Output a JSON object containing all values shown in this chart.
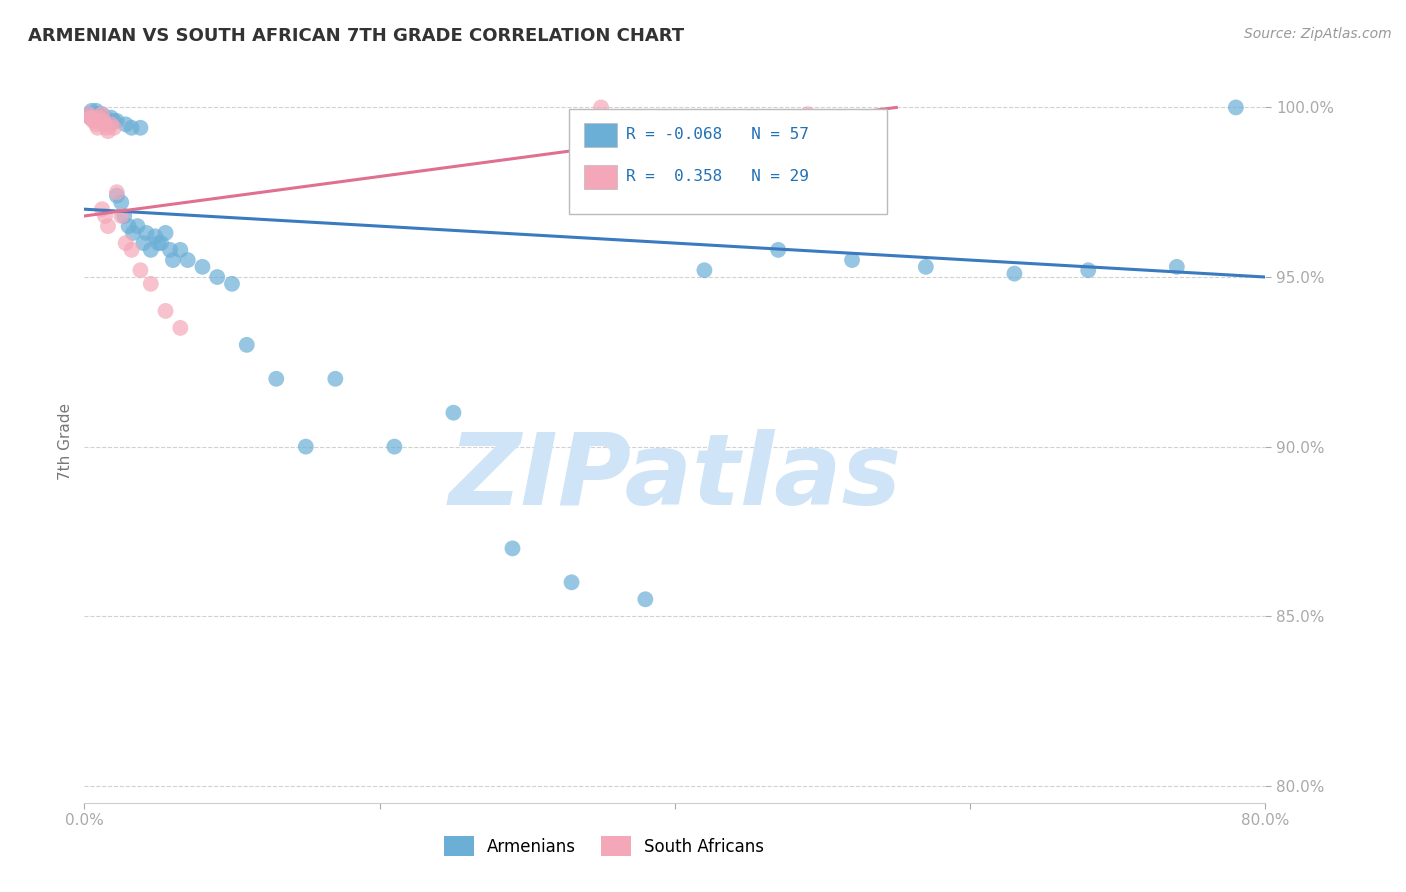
{
  "title": "ARMENIAN VS SOUTH AFRICAN 7TH GRADE CORRELATION CHART",
  "source": "Source: ZipAtlas.com",
  "ylabel": "7th Grade",
  "xlim": [
    0.0,
    0.8
  ],
  "ylim": [
    0.795,
    1.008
  ],
  "xticks": [
    0.0,
    0.2,
    0.4,
    0.6,
    0.8
  ],
  "xtick_labels": [
    "0.0%",
    "",
    "",
    "",
    "80.0%"
  ],
  "yticks": [
    0.8,
    0.85,
    0.9,
    0.95,
    1.0
  ],
  "ytick_labels": [
    "80.0%",
    "85.0%",
    "90.0%",
    "95.0%",
    "100.0%"
  ],
  "armenian_R": -0.068,
  "armenian_N": 57,
  "southafrican_R": 0.358,
  "southafrican_N": 29,
  "armenian_color": "#6baed6",
  "southafrican_color": "#f4a7b9",
  "trendline_armenian_color": "#3a7abf",
  "trendline_southafrican_color": "#e07090",
  "title_fontsize": 13,
  "source_fontsize": 10,
  "axis_label_fontsize": 11,
  "tick_fontsize": 11,
  "legend_fontsize": 12,
  "armenian_x": [
    0.003,
    0.004,
    0.005,
    0.006,
    0.007,
    0.008,
    0.009,
    0.01,
    0.011,
    0.012,
    0.013,
    0.014,
    0.015,
    0.016,
    0.018,
    0.02,
    0.022,
    0.025,
    0.027,
    0.03,
    0.033,
    0.036,
    0.04,
    0.045,
    0.05,
    0.055,
    0.06,
    0.065,
    0.07,
    0.08,
    0.09,
    0.1,
    0.11,
    0.13,
    0.15,
    0.17,
    0.21,
    0.25,
    0.29,
    0.33,
    0.38,
    0.42,
    0.47,
    0.52,
    0.57,
    0.63,
    0.68,
    0.74,
    0.78,
    0.022,
    0.028,
    0.032,
    0.038,
    0.042,
    0.048,
    0.052,
    0.058
  ],
  "armenian_y": [
    0.998,
    0.997,
    0.999,
    0.998,
    0.997,
    0.999,
    0.998,
    0.997,
    0.996,
    0.998,
    0.996,
    0.997,
    0.996,
    0.995,
    0.997,
    0.996,
    0.974,
    0.972,
    0.968,
    0.965,
    0.963,
    0.965,
    0.96,
    0.958,
    0.96,
    0.963,
    0.955,
    0.958,
    0.955,
    0.953,
    0.95,
    0.948,
    0.93,
    0.92,
    0.9,
    0.92,
    0.9,
    0.91,
    0.87,
    0.86,
    0.855,
    0.952,
    0.958,
    0.955,
    0.953,
    0.951,
    0.952,
    0.953,
    1.0,
    0.996,
    0.995,
    0.994,
    0.994,
    0.963,
    0.962,
    0.96,
    0.958
  ],
  "southafrican_x": [
    0.003,
    0.004,
    0.005,
    0.006,
    0.007,
    0.008,
    0.009,
    0.01,
    0.011,
    0.012,
    0.013,
    0.014,
    0.015,
    0.016,
    0.018,
    0.02,
    0.022,
    0.025,
    0.028,
    0.032,
    0.038,
    0.045,
    0.055,
    0.065,
    0.35,
    0.49,
    0.012,
    0.014,
    0.016
  ],
  "southafrican_y": [
    0.998,
    0.997,
    0.997,
    0.996,
    0.996,
    0.995,
    0.994,
    0.997,
    0.996,
    0.998,
    0.996,
    0.995,
    0.994,
    0.993,
    0.995,
    0.994,
    0.975,
    0.968,
    0.96,
    0.958,
    0.952,
    0.948,
    0.94,
    0.935,
    1.0,
    0.998,
    0.97,
    0.968,
    0.965
  ],
  "background_color": "#ffffff",
  "grid_color": "#cccccc",
  "watermark_text": "ZIPatlas",
  "watermark_color": "#d0e4f7",
  "watermark_fontsize": 72,
  "trendline_arm_x0": 0.0,
  "trendline_arm_y0": 0.97,
  "trendline_arm_x1": 0.8,
  "trendline_arm_y1": 0.95,
  "trendline_sa_x0": 0.0,
  "trendline_sa_y0": 0.968,
  "trendline_sa_x1": 0.55,
  "trendline_sa_y1": 1.0
}
